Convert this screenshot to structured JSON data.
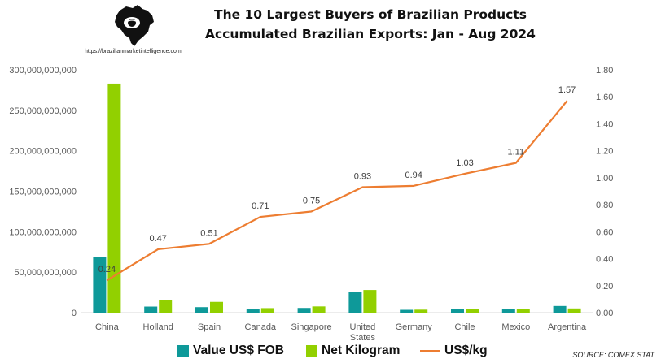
{
  "header": {
    "title_line1": "The 10 Largest Buyers of Brazilian Products",
    "title_line2": "Accumulated Brazilian Exports: Jan - Aug 2024",
    "url": "https://brazilianmarketintelligence.com",
    "logo_icon": "brazil-map-logo-icon"
  },
  "source": "SOURCE: COMEX STAT",
  "colors": {
    "value": "#0E9999",
    "kilogram": "#92D000",
    "price": "#ED7D31",
    "axis": "#D9D9D9"
  },
  "legend": {
    "value": "Value US$ FOB",
    "kilogram": "Net Kilogram",
    "price": "US$/kg"
  },
  "chart_data": {
    "type": "bar",
    "categories": [
      "China",
      "Holland",
      "Spain",
      "Canada",
      "Singapore",
      "United States",
      "Germany",
      "Chile",
      "Mexico",
      "Argentina"
    ],
    "series": [
      {
        "name": "Value US$ FOB",
        "type": "bar",
        "axis": "left",
        "values": [
          69000000000,
          7500000000,
          6800000000,
          4000000000,
          5800000000,
          26000000000,
          3500000000,
          4600000000,
          5000000000,
          8200000000
        ]
      },
      {
        "name": "Net Kilogram",
        "type": "bar",
        "axis": "left",
        "values": [
          283000000000,
          16000000000,
          13300000000,
          5600000000,
          7700000000,
          28000000000,
          3700000000,
          4500000000,
          4500000000,
          5200000000
        ]
      },
      {
        "name": "US$/kg",
        "type": "line",
        "axis": "right",
        "values": [
          0.24,
          0.47,
          0.51,
          0.71,
          0.75,
          0.93,
          0.94,
          1.03,
          1.11,
          1.57
        ],
        "data_labels": [
          "0.24",
          "0.47",
          "0.51",
          "0.71",
          "0.75",
          "0.93",
          "0.94",
          "1.03",
          "1.11",
          "1.57"
        ]
      }
    ],
    "ylim_left": [
      0,
      300000000000
    ],
    "ylim_right": [
      0,
      1.8
    ],
    "yticks_left": [
      "0",
      "50,000,000,000",
      "100,000,000,000",
      "150,000,000,000",
      "200,000,000,000",
      "250,000,000,000",
      "300,000,000,000"
    ],
    "yticks_right": [
      "0.00",
      "0.20",
      "0.40",
      "0.60",
      "0.80",
      "1.00",
      "1.20",
      "1.40",
      "1.60",
      "1.80"
    ],
    "grid": false,
    "legend_position": "bottom"
  }
}
